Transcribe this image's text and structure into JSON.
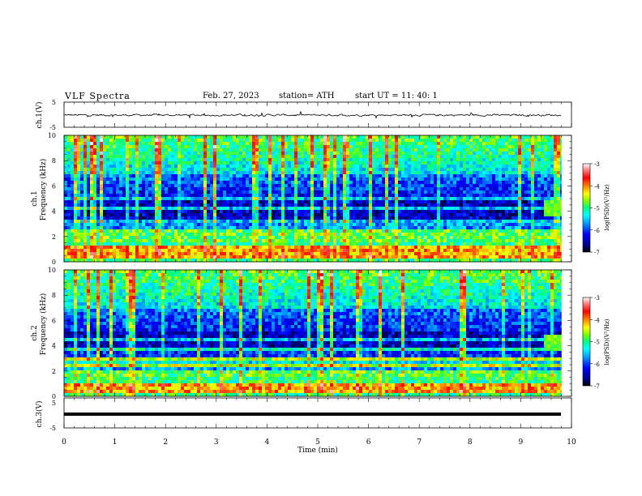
{
  "header": {
    "title": "VLF  Spectra",
    "date": "Feb. 27, 2023",
    "station": "station= ATH",
    "start": "start  UT  =    11: 40: 1"
  },
  "chart_data": [
    {
      "type": "line",
      "ylabel": "ch.1(V)",
      "xlim": [
        0,
        10
      ],
      "ylim": [
        -5,
        5
      ],
      "y_ticks": [
        "5",
        "-5"
      ],
      "baseline": 0,
      "description_level": "noise trace near 0 V"
    },
    {
      "type": "heatmap",
      "ylabel": "Frequency  (kHz)",
      "channel_label": "ch.1",
      "xlim": [
        0,
        10
      ],
      "ylim": [
        0,
        10
      ],
      "y_ticks": [
        "10",
        "8",
        "6",
        "4",
        "2",
        "0"
      ],
      "colorbar": {
        "label": "log(PSD)(V²/Hz)",
        "range": [
          -7,
          -3
        ],
        "ticks": [
          "-3",
          "-4",
          "-5",
          "-6",
          "-7"
        ]
      },
      "data_end_min": 9.8,
      "bands_khz": [
        0.3,
        0.6,
        0.9,
        1.2,
        1.6,
        2.0,
        2.1,
        2.5,
        3.3,
        4.2,
        5.0
      ]
    },
    {
      "type": "heatmap",
      "ylabel": "Frequency  (kHz)",
      "channel_label": "ch.2",
      "xlim": [
        0,
        10
      ],
      "ylim": [
        0,
        10
      ],
      "y_ticks": [
        "10",
        "8",
        "6",
        "4",
        "2",
        "0"
      ],
      "colorbar": {
        "label": "log(PSD)(V²/Hz)",
        "range": [
          -7,
          -3
        ],
        "ticks": [
          "-3",
          "-4",
          "-5",
          "-6",
          "-7"
        ]
      },
      "data_end_min": 9.8,
      "bands_khz": [
        0.4,
        0.7,
        1.0,
        1.6,
        2.0,
        2.5,
        3.0,
        3.6,
        4.5
      ]
    },
    {
      "type": "line",
      "ylabel": "ch.3(V)",
      "xlabel": "Time  (min)",
      "xlim": [
        0,
        10
      ],
      "ylim": [
        -5,
        5
      ],
      "y_ticks": [
        "5",
        "-5"
      ],
      "x_ticks": [
        "0",
        "1",
        "2",
        "3",
        "4",
        "5",
        "6",
        "7",
        "8",
        "9",
        "10"
      ],
      "baseline": 0
    }
  ],
  "colors": {
    "scale": [
      "#000000",
      "#00008b",
      "#0000ff",
      "#00a0ff",
      "#00ffff",
      "#00ff80",
      "#80ff00",
      "#ffff00",
      "#ff8000",
      "#ff0000",
      "#ff8080",
      "#ffffff"
    ]
  }
}
